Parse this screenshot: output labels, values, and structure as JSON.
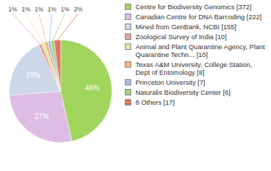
{
  "chart_data": {
    "type": "pie",
    "categories": [
      "Centre for Biodiversity Genomics [372]",
      "Canadian Centre for DNA Barcoding [222]",
      "Mined from GenBank, NCBI [155]",
      "Zoological Survey of India [10]",
      "Animal and Plant Quarantine Agency, Plant Quarantine Techn... [10]",
      "Texas A&M University, College Station, Dept of Entomology [8]",
      "Princeton University [7]",
      "Naturalis Biodiversity Center [6]",
      "8 Others [17]"
    ],
    "values": [
      46,
      27,
      19,
      1,
      1,
      1,
      1,
      1,
      2
    ],
    "value_labels": [
      "46%",
      "27%",
      "19%",
      "1%",
      "1%",
      "1%",
      "1%",
      "1%",
      "2%"
    ],
    "colors": [
      "#a2d55e",
      "#ddbde3",
      "#ccd8e8",
      "#e6a39c",
      "#dfe8a2",
      "#f2b587",
      "#a9bfe2",
      "#a3d47c",
      "#e2735f"
    ],
    "data_labels": true,
    "legend": "right"
  }
}
